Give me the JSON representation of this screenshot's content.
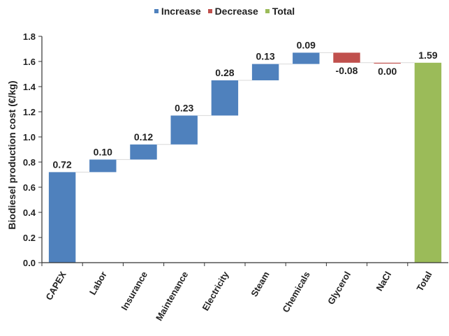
{
  "chart_data": {
    "type": "bar",
    "subtype": "waterfall",
    "title": "",
    "xlabel": "",
    "ylabel": "Biodiesel production cost (€/kg)",
    "ylim": [
      0,
      1.8
    ],
    "yticks": [
      "0.0",
      "0.2",
      "0.4",
      "0.6",
      "0.8",
      "1.0",
      "1.2",
      "1.4",
      "1.6",
      "1.8"
    ],
    "grid": false,
    "legend_position": "top-center",
    "legend": [
      {
        "label": "Increase",
        "color": "#4f81bd"
      },
      {
        "label": "Decrease",
        "color": "#c0504d"
      },
      {
        "label": "Total",
        "color": "#9bbb59"
      }
    ],
    "categories": [
      "CAPEX",
      "Labor",
      "Insurance",
      "Maintenance",
      "Electricity",
      "Steam",
      "Chemicals",
      "Glycerol",
      "NaCl",
      "Total"
    ],
    "values": [
      0.72,
      0.1,
      0.12,
      0.23,
      0.28,
      0.13,
      0.09,
      -0.08,
      0.0,
      1.59
    ],
    "data_labels": [
      "0.72",
      "0.10",
      "0.12",
      "0.23",
      "0.28",
      "0.13",
      "0.09",
      "-0.08",
      "0.00",
      "1.59"
    ],
    "bar_kinds": [
      "increase",
      "increase",
      "increase",
      "increase",
      "increase",
      "increase",
      "increase",
      "decrease",
      "decrease",
      "total"
    ]
  }
}
